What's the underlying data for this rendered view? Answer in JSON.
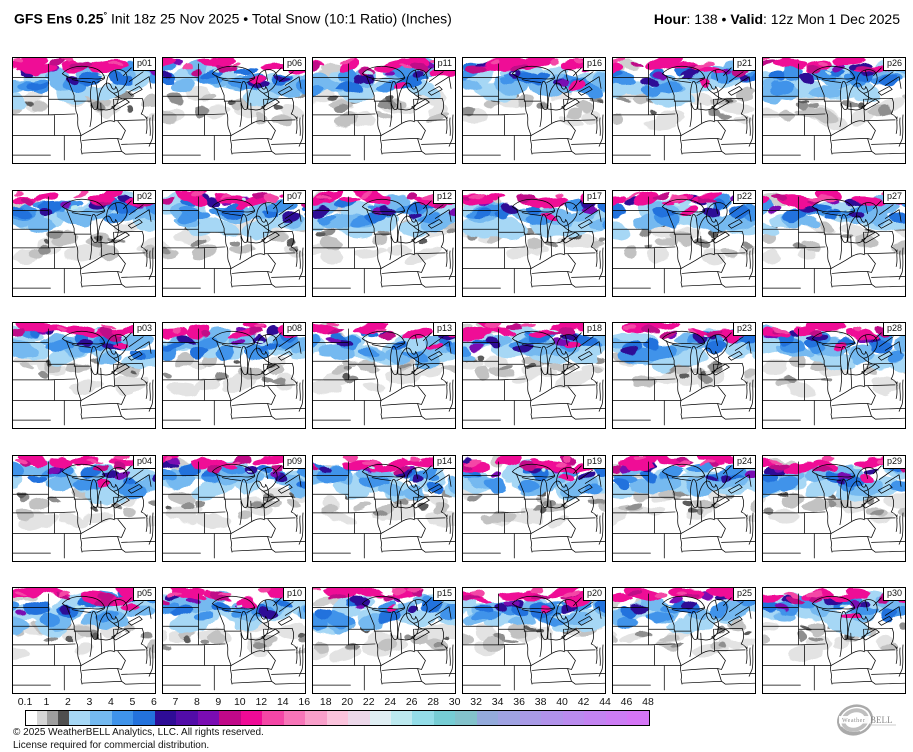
{
  "header": {
    "title_model": "GFS Ens 0.25",
    "title_degree": "°",
    "title_rest": " Init 18z 25 Nov 2025 • Total Snow (10:1 Ratio) (Inches)",
    "hour_label": "Hour",
    "hour_value": ": 138 • ",
    "valid_label": "Valid",
    "valid_value": ": 12z Mon 1 Dec 2025"
  },
  "panels": {
    "labels": [
      "p01",
      "p06",
      "p11",
      "p16",
      "p21",
      "p26",
      "p02",
      "p07",
      "p12",
      "p17",
      "p22",
      "p27",
      "p03",
      "p08",
      "p13",
      "p18",
      "p23",
      "p28",
      "p04",
      "p09",
      "p14",
      "p19",
      "p24",
      "p29",
      "p05",
      "p10",
      "p15",
      "p20",
      "p25",
      "p30"
    ]
  },
  "colorbar": {
    "tick_labels": [
      "0.1",
      "1",
      "2",
      "3",
      "4",
      "5",
      "6",
      "7",
      "8",
      "9",
      "10",
      "12",
      "14",
      "16",
      "18",
      "20",
      "22",
      "24",
      "26",
      "28",
      "30",
      "32",
      "34",
      "36",
      "38",
      "40",
      "42",
      "44",
      "46",
      "48"
    ],
    "segments": [
      {
        "from": 0.1,
        "to": 0.5,
        "color": "#ffffff",
        "w": 0.5
      },
      {
        "from": 0.5,
        "to": 1,
        "color": "#d6d6d6",
        "w": 0.5
      },
      {
        "from": 1,
        "to": 1.5,
        "color": "#9e9e9e",
        "w": 0.5
      },
      {
        "from": 1.5,
        "to": 2,
        "color": "#4f4f4f",
        "w": 0.5
      },
      {
        "from": 2,
        "to": 3,
        "color": "#a6d7f5",
        "w": 1
      },
      {
        "from": 3,
        "to": 4,
        "color": "#74b9f0",
        "w": 1
      },
      {
        "from": 4,
        "to": 5,
        "color": "#3f93ea",
        "w": 1
      },
      {
        "from": 5,
        "to": 6,
        "color": "#2372dd",
        "w": 1
      },
      {
        "from": 6,
        "to": 7,
        "color": "#2e0c96",
        "w": 1
      },
      {
        "from": 7,
        "to": 8,
        "color": "#520ca8",
        "w": 1
      },
      {
        "from": 8,
        "to": 9,
        "color": "#7a0cb2",
        "w": 1
      },
      {
        "from": 9,
        "to": 10,
        "color": "#c00888",
        "w": 1
      },
      {
        "from": 10,
        "to": 12,
        "color": "#ef0a96",
        "w": 1
      },
      {
        "from": 12,
        "to": 14,
        "color": "#f446a6",
        "w": 1
      },
      {
        "from": 14,
        "to": 16,
        "color": "#f775b8",
        "w": 1
      },
      {
        "from": 16,
        "to": 18,
        "color": "#f99fca",
        "w": 1
      },
      {
        "from": 18,
        "to": 20,
        "color": "#fbc3dc",
        "w": 1
      },
      {
        "from": 20,
        "to": 22,
        "color": "#ecd7e9",
        "w": 1
      },
      {
        "from": 22,
        "to": 24,
        "color": "#dfeef3",
        "w": 1
      },
      {
        "from": 24,
        "to": 26,
        "color": "#bce9ef",
        "w": 1
      },
      {
        "from": 26,
        "to": 28,
        "color": "#93dde8",
        "w": 1
      },
      {
        "from": 28,
        "to": 30,
        "color": "#76cdd4",
        "w": 1
      },
      {
        "from": 30,
        "to": 32,
        "color": "#83c2cb",
        "w": 1
      },
      {
        "from": 32,
        "to": 34,
        "color": "#93aadb",
        "w": 1
      },
      {
        "from": 34,
        "to": 36,
        "color": "#9fa2e2",
        "w": 1
      },
      {
        "from": 36,
        "to": 38,
        "color": "#a89ae6",
        "w": 1
      },
      {
        "from": 38,
        "to": 40,
        "color": "#b192ea",
        "w": 1
      },
      {
        "from": 40,
        "to": 42,
        "color": "#ba8bee",
        "w": 1
      },
      {
        "from": 42,
        "to": 44,
        "color": "#c383f1",
        "w": 1
      },
      {
        "from": 44,
        "to": 46,
        "color": "#cc7cf4",
        "w": 1
      },
      {
        "from": 46,
        "to": 48,
        "color": "#d575f6",
        "w": 1
      }
    ]
  },
  "footer": {
    "copyright_line1": "© 2025 WeatherBELL Analytics, LLC. All rights reserved.",
    "copyright_line2": "License required for commercial distribution.",
    "logo": {
      "weather": "Weather",
      "bell": "BELL"
    }
  }
}
